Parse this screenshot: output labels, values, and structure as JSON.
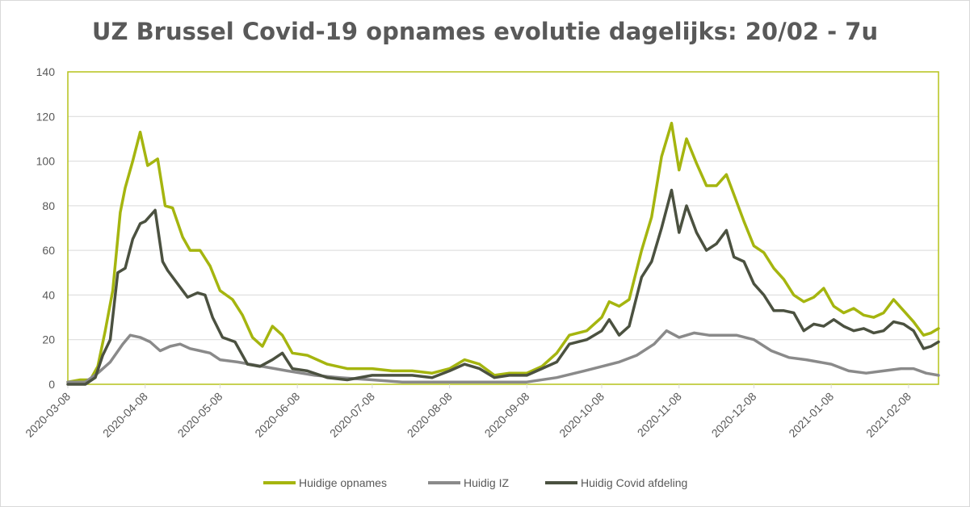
{
  "chart_data": {
    "type": "line",
    "title": "UZ Brussel Covid-19 opnames evolutie dagelijks: 20/02 - 7u",
    "xlabel": "",
    "ylabel": "",
    "ylim": [
      0,
      140
    ],
    "yticks": [
      0,
      20,
      40,
      60,
      80,
      100,
      120,
      140
    ],
    "xticks": [
      "2020-03-08",
      "2020-04-08",
      "2020-05-08",
      "2020-06-08",
      "2020-07-08",
      "2020-08-08",
      "2020-09-08",
      "2020-10-08",
      "2020-11-08",
      "2020-12-08",
      "2021-01-08",
      "2021-02-08"
    ],
    "xrange": [
      "2020-03-08",
      "2021-02-20"
    ],
    "grid": "horizontal",
    "legend_position": "bottom",
    "series": [
      {
        "name": "Huidige opnames",
        "color": "#a5b50f",
        "points": [
          [
            "2020-03-08",
            1
          ],
          [
            "2020-03-13",
            2
          ],
          [
            "2020-03-17",
            2
          ],
          [
            "2020-03-20",
            8
          ],
          [
            "2020-03-23",
            24
          ],
          [
            "2020-03-26",
            42
          ],
          [
            "2020-03-29",
            77
          ],
          [
            "2020-03-31",
            88
          ],
          [
            "2020-04-03",
            100
          ],
          [
            "2020-04-06",
            113
          ],
          [
            "2020-04-09",
            98
          ],
          [
            "2020-04-13",
            101
          ],
          [
            "2020-04-16",
            80
          ],
          [
            "2020-04-19",
            79
          ],
          [
            "2020-04-23",
            66
          ],
          [
            "2020-04-26",
            60
          ],
          [
            "2020-04-30",
            60
          ],
          [
            "2020-05-04",
            53
          ],
          [
            "2020-05-08",
            42
          ],
          [
            "2020-05-13",
            38
          ],
          [
            "2020-05-17",
            31
          ],
          [
            "2020-05-21",
            21
          ],
          [
            "2020-05-25",
            17
          ],
          [
            "2020-05-29",
            26
          ],
          [
            "2020-06-02",
            22
          ],
          [
            "2020-06-06",
            14
          ],
          [
            "2020-06-12",
            13
          ],
          [
            "2020-06-20",
            9
          ],
          [
            "2020-06-28",
            7
          ],
          [
            "2020-07-08",
            7
          ],
          [
            "2020-07-16",
            6
          ],
          [
            "2020-07-24",
            6
          ],
          [
            "2020-08-01",
            5
          ],
          [
            "2020-08-08",
            7
          ],
          [
            "2020-08-14",
            11
          ],
          [
            "2020-08-20",
            9
          ],
          [
            "2020-08-26",
            4
          ],
          [
            "2020-09-01",
            5
          ],
          [
            "2020-09-08",
            5
          ],
          [
            "2020-09-14",
            8
          ],
          [
            "2020-09-20",
            14
          ],
          [
            "2020-09-25",
            22
          ],
          [
            "2020-10-02",
            24
          ],
          [
            "2020-10-08",
            30
          ],
          [
            "2020-10-11",
            37
          ],
          [
            "2020-10-15",
            35
          ],
          [
            "2020-10-19",
            38
          ],
          [
            "2020-10-24",
            60
          ],
          [
            "2020-10-28",
            75
          ],
          [
            "2020-11-01",
            102
          ],
          [
            "2020-11-05",
            117
          ],
          [
            "2020-11-08",
            96
          ],
          [
            "2020-11-11",
            110
          ],
          [
            "2020-11-15",
            99
          ],
          [
            "2020-11-19",
            89
          ],
          [
            "2020-11-23",
            89
          ],
          [
            "2020-11-27",
            94
          ],
          [
            "2020-11-30",
            85
          ],
          [
            "2020-12-04",
            73
          ],
          [
            "2020-12-08",
            62
          ],
          [
            "2020-12-12",
            59
          ],
          [
            "2020-12-16",
            52
          ],
          [
            "2020-12-20",
            47
          ],
          [
            "2020-12-24",
            40
          ],
          [
            "2020-12-28",
            37
          ],
          [
            "2021-01-01",
            39
          ],
          [
            "2021-01-05",
            43
          ],
          [
            "2021-01-09",
            35
          ],
          [
            "2021-01-13",
            32
          ],
          [
            "2021-01-17",
            34
          ],
          [
            "2021-01-21",
            31
          ],
          [
            "2021-01-25",
            30
          ],
          [
            "2021-01-29",
            32
          ],
          [
            "2021-02-02",
            38
          ],
          [
            "2021-02-06",
            33
          ],
          [
            "2021-02-10",
            28
          ],
          [
            "2021-02-14",
            22
          ],
          [
            "2021-02-17",
            23
          ],
          [
            "2021-02-20",
            25
          ]
        ]
      },
      {
        "name": "Huidig IZ",
        "color": "#8a8a8a",
        "points": [
          [
            "2020-03-08",
            1
          ],
          [
            "2020-03-15",
            1
          ],
          [
            "2020-03-20",
            5
          ],
          [
            "2020-03-25",
            10
          ],
          [
            "2020-03-30",
            18
          ],
          [
            "2020-04-02",
            22
          ],
          [
            "2020-04-06",
            21
          ],
          [
            "2020-04-10",
            19
          ],
          [
            "2020-04-14",
            15
          ],
          [
            "2020-04-18",
            17
          ],
          [
            "2020-04-22",
            18
          ],
          [
            "2020-04-26",
            16
          ],
          [
            "2020-04-30",
            15
          ],
          [
            "2020-05-04",
            14
          ],
          [
            "2020-05-08",
            11
          ],
          [
            "2020-05-15",
            10
          ],
          [
            "2020-05-25",
            8
          ],
          [
            "2020-06-04",
            6
          ],
          [
            "2020-06-15",
            4
          ],
          [
            "2020-06-25",
            3
          ],
          [
            "2020-07-08",
            2
          ],
          [
            "2020-07-20",
            1
          ],
          [
            "2020-08-08",
            1
          ],
          [
            "2020-08-20",
            1
          ],
          [
            "2020-09-08",
            1
          ],
          [
            "2020-09-20",
            3
          ],
          [
            "2020-10-01",
            6
          ],
          [
            "2020-10-08",
            8
          ],
          [
            "2020-10-15",
            10
          ],
          [
            "2020-10-22",
            13
          ],
          [
            "2020-10-29",
            18
          ],
          [
            "2020-11-03",
            24
          ],
          [
            "2020-11-08",
            21
          ],
          [
            "2020-11-14",
            23
          ],
          [
            "2020-11-20",
            22
          ],
          [
            "2020-11-26",
            22
          ],
          [
            "2020-12-01",
            22
          ],
          [
            "2020-12-08",
            20
          ],
          [
            "2020-12-15",
            15
          ],
          [
            "2020-12-22",
            12
          ],
          [
            "2020-12-29",
            11
          ],
          [
            "2021-01-08",
            9
          ],
          [
            "2021-01-15",
            6
          ],
          [
            "2021-01-22",
            5
          ],
          [
            "2021-01-29",
            6
          ],
          [
            "2021-02-05",
            7
          ],
          [
            "2021-02-10",
            7
          ],
          [
            "2021-02-15",
            5
          ],
          [
            "2021-02-20",
            4
          ]
        ]
      },
      {
        "name": "Huidig Covid afdeling",
        "color": "#4b5140",
        "points": [
          [
            "2020-03-08",
            0
          ],
          [
            "2020-03-15",
            0
          ],
          [
            "2020-03-19",
            3
          ],
          [
            "2020-03-22",
            13
          ],
          [
            "2020-03-25",
            20
          ],
          [
            "2020-03-28",
            50
          ],
          [
            "2020-03-31",
            52
          ],
          [
            "2020-04-03",
            65
          ],
          [
            "2020-04-06",
            72
          ],
          [
            "2020-04-08",
            73
          ],
          [
            "2020-04-12",
            78
          ],
          [
            "2020-04-15",
            55
          ],
          [
            "2020-04-17",
            51
          ],
          [
            "2020-04-21",
            45
          ],
          [
            "2020-04-25",
            39
          ],
          [
            "2020-04-29",
            41
          ],
          [
            "2020-05-02",
            40
          ],
          [
            "2020-05-05",
            30
          ],
          [
            "2020-05-09",
            21
          ],
          [
            "2020-05-14",
            19
          ],
          [
            "2020-05-19",
            9
          ],
          [
            "2020-05-24",
            8
          ],
          [
            "2020-05-29",
            11
          ],
          [
            "2020-06-02",
            14
          ],
          [
            "2020-06-06",
            7
          ],
          [
            "2020-06-12",
            6
          ],
          [
            "2020-06-20",
            3
          ],
          [
            "2020-06-28",
            2
          ],
          [
            "2020-07-08",
            4
          ],
          [
            "2020-07-16",
            4
          ],
          [
            "2020-07-24",
            4
          ],
          [
            "2020-08-01",
            3
          ],
          [
            "2020-08-08",
            6
          ],
          [
            "2020-08-14",
            9
          ],
          [
            "2020-08-20",
            7
          ],
          [
            "2020-08-26",
            3
          ],
          [
            "2020-09-01",
            4
          ],
          [
            "2020-09-08",
            4
          ],
          [
            "2020-09-14",
            7
          ],
          [
            "2020-09-20",
            10
          ],
          [
            "2020-09-25",
            18
          ],
          [
            "2020-10-02",
            20
          ],
          [
            "2020-10-08",
            24
          ],
          [
            "2020-10-11",
            29
          ],
          [
            "2020-10-15",
            22
          ],
          [
            "2020-10-19",
            26
          ],
          [
            "2020-10-24",
            48
          ],
          [
            "2020-10-28",
            55
          ],
          [
            "2020-11-01",
            70
          ],
          [
            "2020-11-05",
            87
          ],
          [
            "2020-11-08",
            68
          ],
          [
            "2020-11-11",
            80
          ],
          [
            "2020-11-15",
            68
          ],
          [
            "2020-11-19",
            60
          ],
          [
            "2020-11-23",
            63
          ],
          [
            "2020-11-27",
            69
          ],
          [
            "2020-11-30",
            57
          ],
          [
            "2020-12-04",
            55
          ],
          [
            "2020-12-08",
            45
          ],
          [
            "2020-12-12",
            40
          ],
          [
            "2020-12-16",
            33
          ],
          [
            "2020-12-20",
            33
          ],
          [
            "2020-12-24",
            32
          ],
          [
            "2020-12-28",
            24
          ],
          [
            "2021-01-01",
            27
          ],
          [
            "2021-01-05",
            26
          ],
          [
            "2021-01-09",
            29
          ],
          [
            "2021-01-13",
            26
          ],
          [
            "2021-01-17",
            24
          ],
          [
            "2021-01-21",
            25
          ],
          [
            "2021-01-25",
            23
          ],
          [
            "2021-01-29",
            24
          ],
          [
            "2021-02-02",
            28
          ],
          [
            "2021-02-06",
            27
          ],
          [
            "2021-02-10",
            24
          ],
          [
            "2021-02-14",
            16
          ],
          [
            "2021-02-17",
            17
          ],
          [
            "2021-02-20",
            19
          ]
        ]
      }
    ]
  }
}
